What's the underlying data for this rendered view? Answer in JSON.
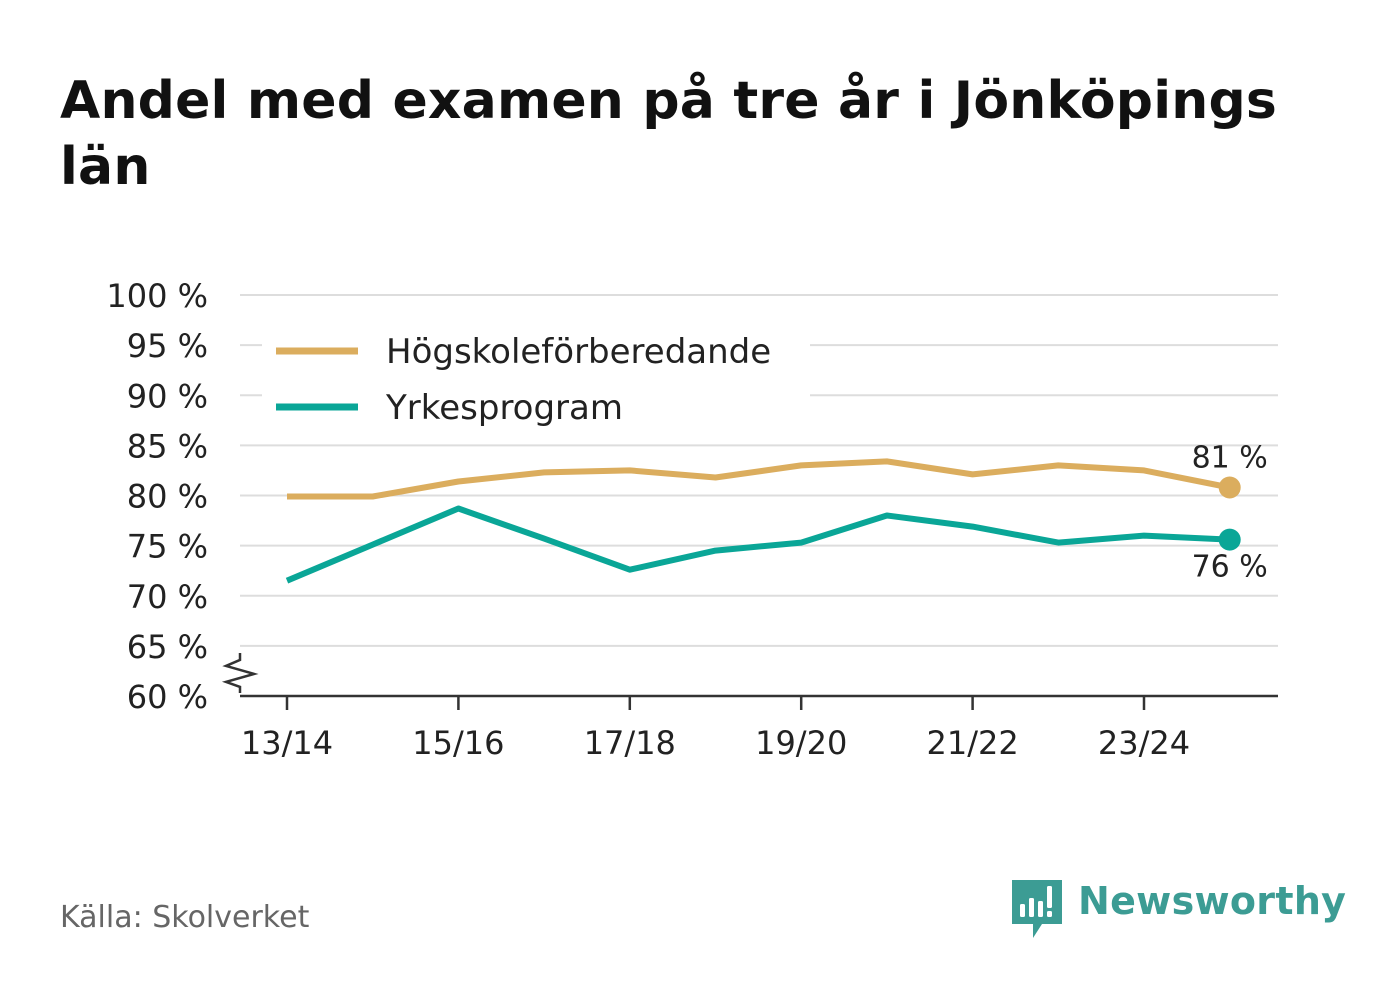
{
  "title": "Andel med examen på tre år i Jönköpings län",
  "source": "Källa: Skolverket",
  "brand": {
    "name": "Newsworthy",
    "logo_icon": "bar-chart-speech-bubble-icon",
    "color": "#3c9c94"
  },
  "chart_data": {
    "type": "line",
    "title": "Andel med examen på tre år i Jönköpings län",
    "xlabel": "",
    "ylabel": "",
    "ylim": [
      60,
      100
    ],
    "y_ticks": [
      60,
      65,
      70,
      75,
      80,
      85,
      90,
      95,
      100
    ],
    "y_tick_labels": [
      "60 %",
      "65 %",
      "70 %",
      "75 %",
      "80 %",
      "85 %",
      "90 %",
      "95 %",
      "100 %"
    ],
    "y_axis_break": true,
    "x": [
      "13/14",
      "14/15",
      "15/16",
      "16/17",
      "17/18",
      "18/19",
      "19/20",
      "20/21",
      "21/22",
      "22/23",
      "23/24",
      "24/25"
    ],
    "x_tick_labels": [
      "13/14",
      "15/16",
      "17/18",
      "19/20",
      "21/22",
      "23/24"
    ],
    "grid": true,
    "legend": "top-left",
    "series": [
      {
        "name": "Högskoleförberedande",
        "color": "#dbad5e",
        "values": [
          79.9,
          79.9,
          81.4,
          82.3,
          82.5,
          81.8,
          83.0,
          83.4,
          82.1,
          83.0,
          82.5,
          80.8
        ],
        "end_label": "81 %"
      },
      {
        "name": "Yrkesprogram",
        "color": "#0aa697",
        "values": [
          71.5,
          75.1,
          78.7,
          75.7,
          72.6,
          74.5,
          75.3,
          78.0,
          76.9,
          75.3,
          76.0,
          75.6
        ],
        "end_label": "76 %"
      }
    ]
  }
}
